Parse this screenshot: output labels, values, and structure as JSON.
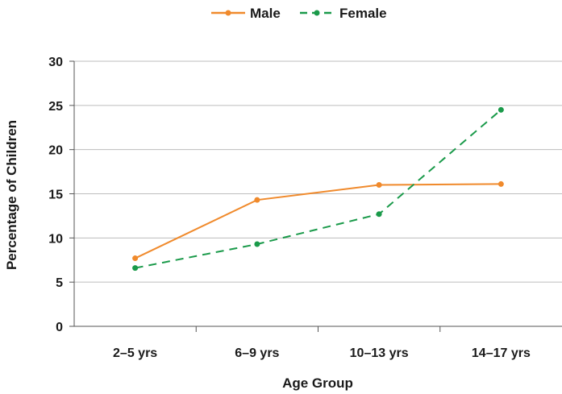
{
  "chart_data": {
    "type": "line",
    "categories": [
      "2–5 yrs",
      "6–9 yrs",
      "10–13 yrs",
      "14–17 yrs"
    ],
    "series": [
      {
        "name": "Male",
        "values": [
          7.7,
          14.3,
          16.0,
          16.1
        ],
        "color": "#f08a2c",
        "dash": "solid"
      },
      {
        "name": "Female",
        "values": [
          6.6,
          9.3,
          12.7,
          24.5
        ],
        "color": "#1a9a4a",
        "dash": "dashed"
      }
    ],
    "xlabel": "Age Group",
    "ylabel": "Percentage of Children",
    "ylim": [
      0,
      30
    ],
    "yticks": [
      0,
      5,
      10,
      15,
      20,
      25,
      30
    ],
    "grid": true,
    "legend": "top-center"
  }
}
